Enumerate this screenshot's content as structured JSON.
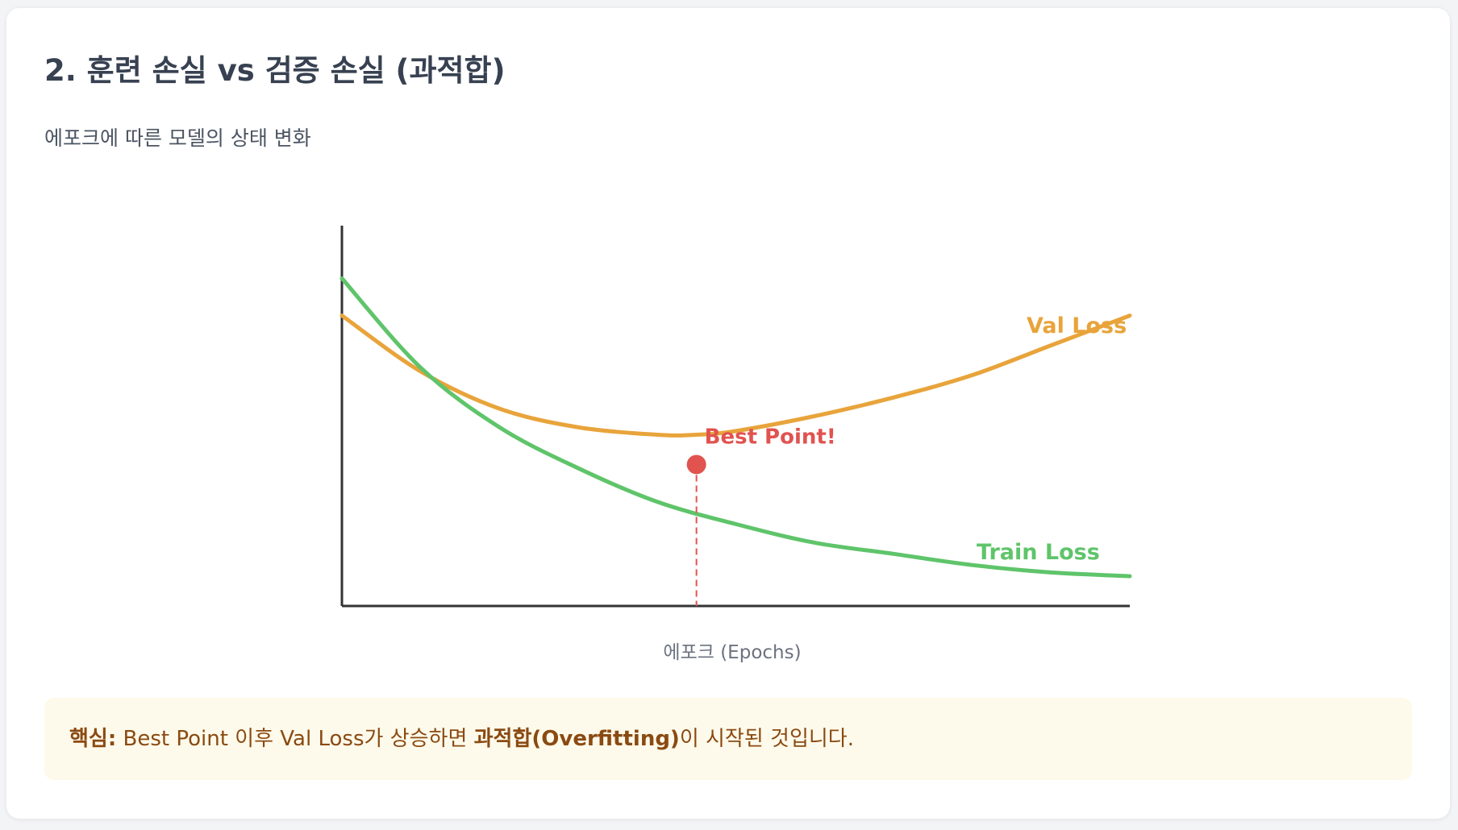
{
  "page": {
    "title": "2. 훈련 손실 vs 검증 손실 (과적합)",
    "subtitle": "에포크에 따른 모델의 상태 변화"
  },
  "callout": {
    "label": "핵심:",
    "text_before": " Best Point 이후 Val Loss가 상승하면 ",
    "highlight": "과적합(Overfitting)",
    "text_after": "이 시작된 것입니다."
  },
  "colors": {
    "val_loss": "#e8a43b",
    "train_loss": "#5fc46a",
    "best_point": "#e0534f",
    "axis": "#333333"
  },
  "chart_data": {
    "type": "line",
    "title": "",
    "xlabel": "에포크 (Epochs)",
    "ylabel": "",
    "xlim": [
      0,
      100
    ],
    "ylim": [
      0,
      100
    ],
    "grid": false,
    "legend": "inline labels at line ends",
    "series": [
      {
        "name": "Val Loss",
        "x": [
          0,
          10,
          20,
          30,
          40,
          45,
          50,
          60,
          70,
          80,
          90,
          100
        ],
        "values": [
          78,
          63,
          53,
          48,
          46,
          46,
          47,
          51,
          56,
          62,
          70,
          78
        ]
      },
      {
        "name": "Train Loss",
        "x": [
          0,
          10,
          20,
          30,
          40,
          50,
          60,
          70,
          80,
          90,
          100
        ],
        "values": [
          88,
          64,
          48,
          37,
          28,
          22,
          17,
          14,
          11,
          9,
          8
        ]
      }
    ],
    "annotations": [
      {
        "label": "Best Point!",
        "x": 45,
        "y": 38
      }
    ]
  }
}
